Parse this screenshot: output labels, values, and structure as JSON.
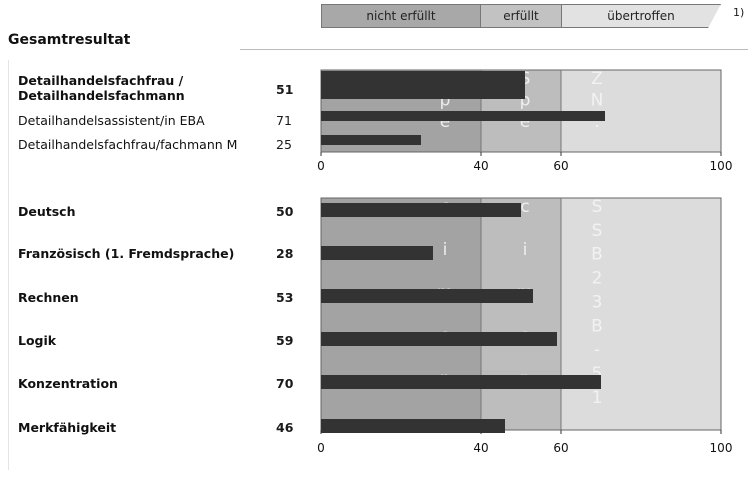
{
  "header": {
    "tabs": [
      {
        "label": "nicht erfüllt"
      },
      {
        "label": "erfüllt"
      },
      {
        "label": "übertroffen"
      }
    ],
    "footnote": "1)"
  },
  "section_title": "Gesamtresultat",
  "colors": {
    "zone_low": "#a3a3a3",
    "zone_mid": "#bdbdbd",
    "zone_high": "#dcdcdc",
    "bar": "#333333",
    "watermark": "#f5f5f5"
  },
  "chart_data": [
    {
      "type": "bar",
      "orientation": "horizontal",
      "xlim": [
        0,
        100
      ],
      "zones": [
        {
          "from": 0,
          "to": 40
        },
        {
          "from": 40,
          "to": 60
        },
        {
          "from": 60,
          "to": 100
        }
      ],
      "ticks": [
        "0",
        "40",
        "60",
        "100"
      ],
      "categories": [
        "Detailhandelsfachfrau / Detailhandelsfachmann",
        "Detailhandelsassistent/in EBA",
        "Detailhandelsfachfrau/fachmann M"
      ],
      "values": [
        51,
        71,
        25
      ]
    },
    {
      "type": "bar",
      "orientation": "horizontal",
      "xlim": [
        0,
        100
      ],
      "zones": [
        {
          "from": 0,
          "to": 40
        },
        {
          "from": 40,
          "to": 60
        },
        {
          "from": 60,
          "to": 100
        }
      ],
      "ticks": [
        "0",
        "40",
        "60",
        "100"
      ],
      "categories": [
        "Deutsch",
        "Französisch (1. Fremdsprache)",
        "Rechnen",
        "Logik",
        "Konzentration",
        "Merkfähigkeit"
      ],
      "values": [
        50,
        28,
        53,
        59,
        70,
        46
      ]
    }
  ],
  "watermark": {
    "chart1": {
      "col1": "Spé",
      "col2": "Spé",
      "col3": "ZN:"
    },
    "chart2": {
      "col1": "cimen",
      "col2": "cimen",
      "col3": "SSB23B-51"
    }
  }
}
